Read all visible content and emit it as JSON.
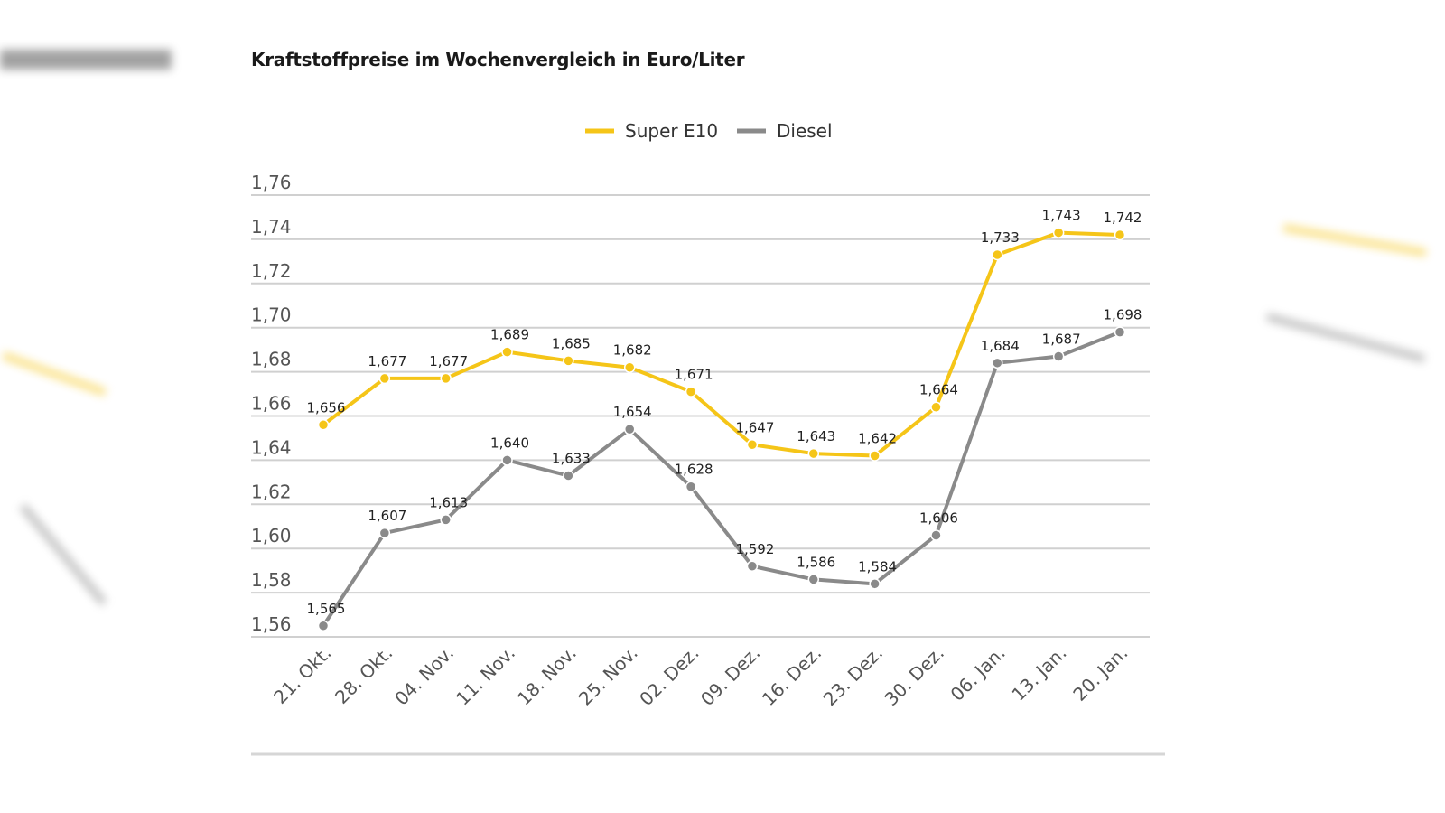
{
  "chart_data": {
    "type": "line",
    "title": "Kraftstoffpreise im Wochenvergleich in Euro/Liter",
    "xlabel": "",
    "ylabel": "",
    "categories": [
      "21. Okt.",
      "28. Okt.",
      "04. Nov.",
      "11. Nov.",
      "18. Nov.",
      "25. Nov.",
      "02. Dez.",
      "09. Dez.",
      "16. Dez.",
      "23. Dez.",
      "30. Dez.",
      "06. Jan.",
      "13. Jan.",
      "20. Jan."
    ],
    "series": [
      {
        "name": "Super E10",
        "color": "#f5c518",
        "values": [
          1.656,
          1.677,
          1.677,
          1.689,
          1.685,
          1.682,
          1.671,
          1.647,
          1.643,
          1.642,
          1.664,
          1.733,
          1.743,
          1.742
        ],
        "labels": [
          "1,656",
          "1,677",
          "1,677",
          "1,689",
          "1,685",
          "1,682",
          "1,671",
          "1,647",
          "1,643",
          "1,642",
          "1,664",
          "1,733",
          "1,743",
          "1,742"
        ]
      },
      {
        "name": "Diesel",
        "color": "#8a8a8a",
        "values": [
          1.565,
          1.607,
          1.613,
          1.64,
          1.633,
          1.654,
          1.628,
          1.592,
          1.586,
          1.584,
          1.606,
          1.684,
          1.687,
          1.698
        ],
        "labels": [
          "1,565",
          "1,607",
          "1,613",
          "1,640",
          "1,633",
          "1,654",
          "1,628",
          "1,592",
          "1,586",
          "1,584",
          "1,606",
          "1,684",
          "1,687",
          "1,698"
        ]
      }
    ],
    "ylim": [
      1.56,
      1.76
    ],
    "yticks": [
      1.76,
      1.74,
      1.72,
      1.7,
      1.68,
      1.66,
      1.64,
      1.62,
      1.6,
      1.58,
      1.56
    ],
    "ytick_labels": [
      "1,76",
      "1,74",
      "1,72",
      "1,70",
      "1,68",
      "1,66",
      "1,64",
      "1,62",
      "1,60",
      "1,58",
      "1,56"
    ],
    "grid": true,
    "legend": "top-center"
  }
}
